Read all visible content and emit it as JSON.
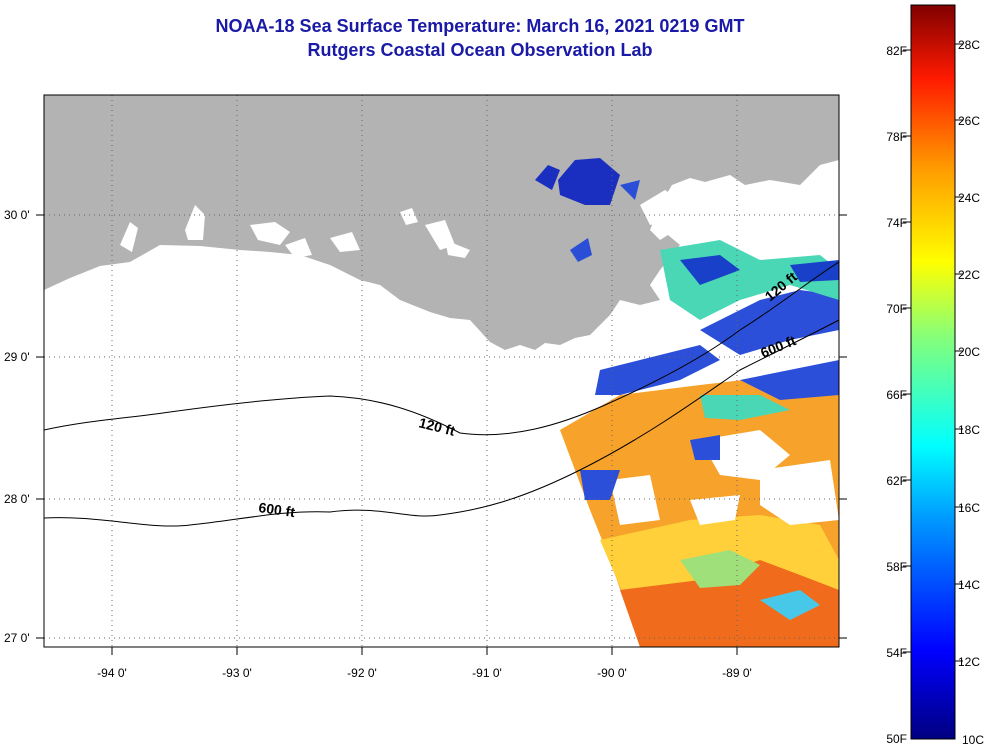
{
  "title": "NOAA-18 Sea Surface Temperature:  March 16, 2021 0219 GMT",
  "subtitle": "Rutgers Coastal Ocean Observation Lab",
  "map": {
    "lon_ticks": [
      "-94 0'",
      "-93 0'",
      "-92 0'",
      "-91 0'",
      "-90 0'",
      "-89 0'"
    ],
    "lat_ticks": [
      "30 0'",
      "29 0'",
      "28 0'",
      "27 0'"
    ],
    "isobath_labels": [
      "120 ft",
      "600 ft",
      "120 ft",
      "600 ft"
    ],
    "land_color": "#b3b3b3",
    "grid_style": "dotted"
  },
  "colorbar": {
    "fahrenheit_labels": [
      "82F",
      "78F",
      "74F",
      "70F",
      "66F",
      "62F",
      "58F",
      "54F",
      "50F"
    ],
    "celsius_labels": [
      "28C",
      "26C",
      "24C",
      "22C",
      "20C",
      "18C",
      "16C",
      "14C",
      "12C",
      "10C"
    ],
    "colors": [
      "#000080",
      "#0000ff",
      "#00aaff",
      "#00ffff",
      "#80ff80",
      "#ffff00",
      "#ff9900",
      "#ff0000",
      "#800000"
    ]
  }
}
